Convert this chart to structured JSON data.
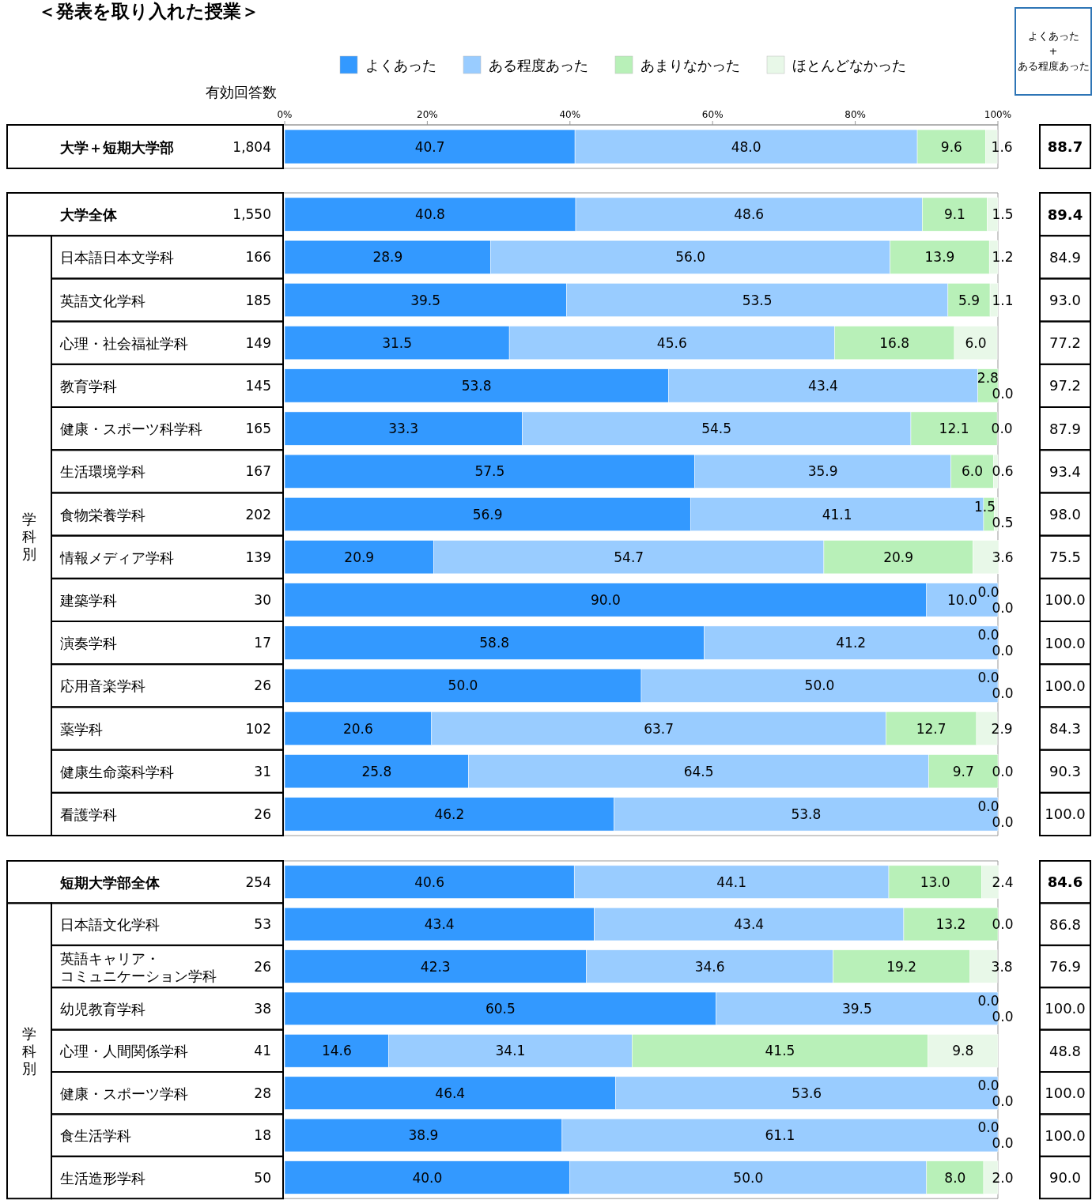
{
  "chart_data": [
    {
      "type": "bar",
      "orientation": "horizontal",
      "stacked": true,
      "legend": "top",
      "title": "＜発表を取り入れた授業＞",
      "categories": [
        "大学＋短期大学部"
      ],
      "xlim": [
        0,
        100
      ],
      "xticks": [
        {
          "value": 0,
          "label": "0%"
        },
        {
          "value": 20,
          "label": "20%"
        },
        {
          "value": 40,
          "label": "40%"
        },
        {
          "value": 60,
          "label": "60%"
        },
        {
          "value": 80,
          "label": "80%"
        },
        {
          "value": 100,
          "label": "100%"
        }
      ],
      "series": [
        {
          "name": "よくあった",
          "color": "#3399ff",
          "values": [
            40.7
          ],
          "value_labels": [
            "40.7"
          ]
        },
        {
          "name": "ある程度あった",
          "color": "#99ccff",
          "values": [
            48.0
          ],
          "value_labels": [
            "48.0"
          ]
        },
        {
          "name": "あまりなかった",
          "color": "#b8f0b8",
          "values": [
            9.6
          ],
          "value_labels": [
            "9.6"
          ]
        },
        {
          "name": "ほとんどなかった",
          "color": "#e8f8e8",
          "values": [
            1.6
          ],
          "value_labels": [
            "1.6"
          ]
        }
      ],
      "annotations": [
        "有効回答数",
        "よくあった\n+\nある程度あった",
        "1,804",
        "88.7"
      ]
    },
    {
      "type": "bar",
      "orientation": "horizontal",
      "stacked": true,
      "tick_labels": "y",
      "xlim": [
        0,
        100
      ],
      "categories": [
        "大学全体",
        "日本語日本文学科",
        "英語文化学科",
        "心理・社会福祉学科",
        "教育学科",
        "健康・スポーツ科学科",
        "生活環境学科",
        "食物栄養学科",
        "情報メディア学科",
        "建築学科",
        "演奏学科",
        "応用音楽学科",
        "薬学科",
        "健康生命薬科学科",
        "看護学科"
      ],
      "series": [
        {
          "color": "#3399ff",
          "values": [
            40.8,
            28.9,
            39.5,
            31.5,
            53.8,
            33.3,
            57.5,
            56.9,
            20.9,
            90.0,
            58.8,
            50.0,
            20.6,
            25.8,
            46.2
          ],
          "value_labels": [
            "40.8",
            "28.9",
            "39.5",
            "31.5",
            "53.8",
            "33.3",
            "57.5",
            "56.9",
            "20.9",
            "90.0",
            "58.8",
            "50.0",
            "20.6",
            "25.8",
            "46.2"
          ]
        },
        {
          "color": "#99ccff",
          "values": [
            48.6,
            56.0,
            53.5,
            45.6,
            43.4,
            54.5,
            35.9,
            41.1,
            54.7,
            10.0,
            41.2,
            50.0,
            63.7,
            64.5,
            53.8
          ],
          "value_labels": [
            "48.6",
            "56.0",
            "53.5",
            "45.6",
            "43.4",
            "54.5",
            "35.9",
            "41.1",
            "54.7",
            "10.0",
            "41.2",
            "50.0",
            "63.7",
            "64.5",
            "53.8"
          ]
        },
        {
          "color": "#b8f0b8",
          "values": [
            9.1,
            13.9,
            5.9,
            16.8,
            2.8,
            12.1,
            6.0,
            1.5,
            20.9,
            0.0,
            0.0,
            0.0,
            12.7,
            9.7,
            0.0
          ],
          "value_labels": [
            "9.1",
            "13.9",
            "5.9",
            "16.8",
            "2.8",
            "12.1",
            "6.0",
            "1.5",
            "20.9",
            "0.0",
            "0.0",
            "0.0",
            "12.7",
            "9.7",
            "0.0"
          ]
        },
        {
          "color": "#e8f8e8",
          "values": [
            1.5,
            1.2,
            1.1,
            6.0,
            0.0,
            0.0,
            0.6,
            0.5,
            3.6,
            0.0,
            0.0,
            0.0,
            2.9,
            0.0,
            0.0
          ],
          "value_labels": [
            "1.5",
            "1.2",
            "1.1",
            "6.0",
            "0.0",
            "0.0",
            "0.6",
            "0.5",
            "3.6",
            "0.0",
            "0.0",
            "0.0",
            "2.9",
            "0.0",
            "0.0"
          ]
        }
      ],
      "annotations": [
        "学科別",
        "1,550",
        "89.4",
        "166",
        "84.9",
        "185",
        "93.0",
        "149",
        "77.2",
        "145",
        "97.2",
        "165",
        "87.9",
        "167",
        "93.4",
        "202",
        "98.0",
        "139",
        "75.5",
        "30",
        "100.0",
        "17",
        "100.0",
        "26",
        "100.0",
        "102",
        "84.3",
        "31",
        "90.3",
        "26",
        "100.0"
      ]
    },
    {
      "type": "bar",
      "orientation": "horizontal",
      "stacked": true,
      "tick_labels": "y",
      "xlim": [
        0,
        100
      ],
      "categories": [
        "短期大学部全体",
        "日本語文化学科",
        "英語キャリア・コミュニケーション学科",
        "幼児教育学科",
        "心理・人間関係学科",
        "健康・スポーツ学科",
        "食生活学科",
        "生活造形学科"
      ],
      "series": [
        {
          "color": "#3399ff",
          "values": [
            40.6,
            43.4,
            42.3,
            60.5,
            14.6,
            46.4,
            38.9,
            40.0
          ],
          "value_labels": [
            "40.6",
            "43.4",
            "42.3",
            "60.5",
            "14.6",
            "46.4",
            "38.9",
            "40.0"
          ]
        },
        {
          "color": "#99ccff",
          "values": [
            44.1,
            43.4,
            34.6,
            39.5,
            34.1,
            53.6,
            61.1,
            50.0
          ],
          "value_labels": [
            "44.1",
            "43.4",
            "34.6",
            "39.5",
            "34.1",
            "53.6",
            "61.1",
            "50.0"
          ]
        },
        {
          "color": "#b8f0b8",
          "values": [
            13.0,
            13.2,
            19.2,
            0.0,
            41.5,
            0.0,
            0.0,
            8.0
          ],
          "value_labels": [
            "13.0",
            "13.2",
            "19.2",
            "0.0",
            "41.5",
            "0.0",
            "0.0",
            "8.0"
          ]
        },
        {
          "color": "#e8f8e8",
          "values": [
            2.4,
            0.0,
            3.8,
            0.0,
            9.8,
            0.0,
            0.0,
            2.0
          ],
          "value_labels": [
            "2.4",
            "0.0",
            "3.8",
            "0.0",
            "9.8",
            "0.0",
            "0.0",
            "2.0"
          ]
        }
      ],
      "annotations": [
        "学科別",
        "254",
        "84.6",
        "53",
        "86.8",
        "26",
        "76.9",
        "38",
        "100.0",
        "41",
        "48.8",
        "28",
        "100.0",
        "18",
        "100.0",
        "50",
        "90.0"
      ]
    }
  ]
}
